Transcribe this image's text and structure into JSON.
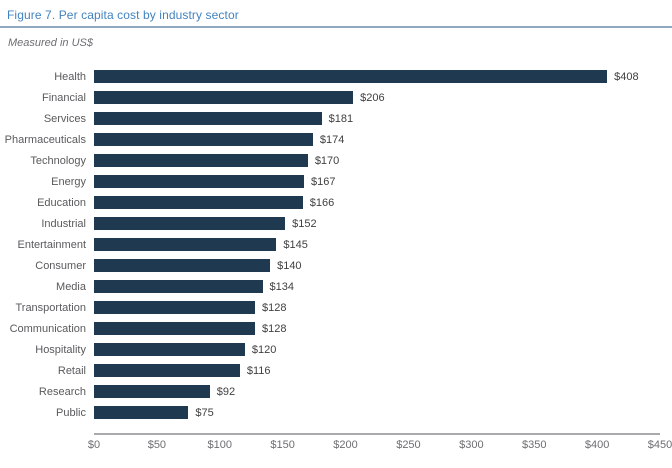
{
  "header": {
    "title": "Figure 7. Per capita cost by industry sector",
    "subtitle": "Measured in US$"
  },
  "colors": {
    "bar": "#1f3a50",
    "title_blue": "#4383bf",
    "rule_blue": "#8fa8c0",
    "category_label": "#595a5c",
    "value_label": "#414042",
    "axis_label": "#6d6e71",
    "axis_line": "#a8aaad"
  },
  "chart_data": {
    "type": "bar",
    "orientation": "horizontal",
    "title": "Figure 7. Per capita cost by industry sector",
    "subtitle": "Measured in US$",
    "xlabel": "",
    "ylabel": "",
    "xlim": [
      0,
      450
    ],
    "grid": false,
    "legend": false,
    "categories": [
      "Health",
      "Financial",
      "Services",
      "Pharmaceuticals",
      "Technology",
      "Energy",
      "Education",
      "Industrial",
      "Entertainment",
      "Consumer",
      "Media",
      "Transportation",
      "Communication",
      "Hospitality",
      "Retail",
      "Research",
      "Public"
    ],
    "values": [
      408,
      206,
      181,
      174,
      170,
      167,
      166,
      152,
      145,
      140,
      134,
      128,
      128,
      120,
      116,
      92,
      75
    ],
    "value_labels": [
      "$408",
      "$206",
      "$181",
      "$174",
      "$170",
      "$167",
      "$166",
      "$152",
      "$145",
      "$140",
      "$134",
      "$128",
      "$128",
      "$120",
      "$116",
      "$92",
      "$75"
    ],
    "x_ticks": [
      0,
      50,
      100,
      150,
      200,
      250,
      300,
      350,
      400,
      450
    ],
    "x_tick_labels": [
      "$0",
      "$50",
      "$100",
      "$150",
      "$200",
      "$250",
      "$300",
      "$350",
      "$400",
      "$450"
    ]
  }
}
